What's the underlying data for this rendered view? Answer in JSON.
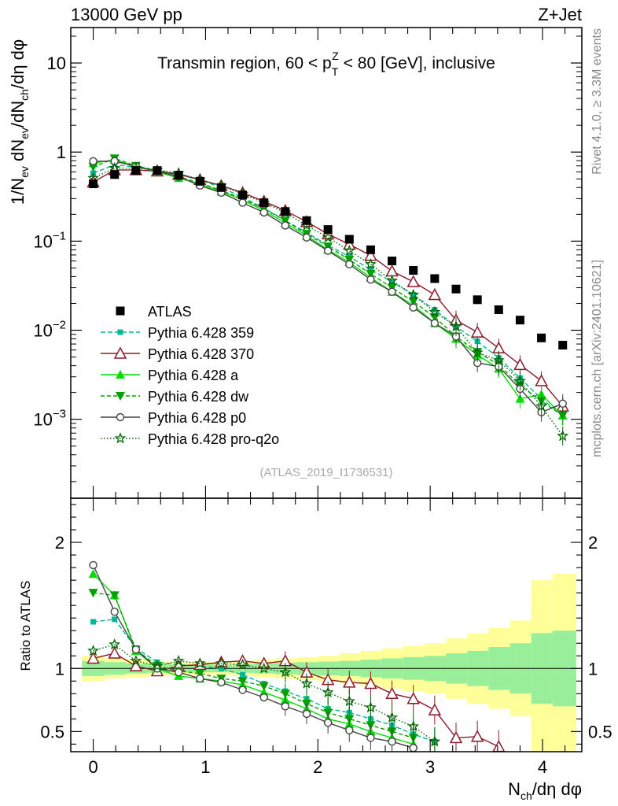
{
  "header": {
    "left": "13000 GeV pp",
    "right": "Z+Jet"
  },
  "side_labels": {
    "rivet": "Rivet 4.1.0, ≥ 3.3M events",
    "mcplots": "mcplots.cern.ch [arXiv:2401.10621]"
  },
  "analysis_id": "(ATLAS_2019_I1736531)",
  "colors": {
    "atlas": "#000000",
    "p359": "#00b894",
    "p370": "#8b1a2b",
    "pa": "#00dd00",
    "pdw": "#00a000",
    "pp0": "#444444",
    "ppro": "#006400",
    "band_inner": "#99ee99",
    "band_outer": "#ffff99"
  },
  "chart_data": [
    {
      "type": "line",
      "title": "Transmin region, 60 < p_T^Z < 80 [GeV], inclusive",
      "title_parts": {
        "a": "Transmin region, 60 < p",
        "sub": "T",
        "sup": "Z",
        "b": " < 80 [GeV], inclusive"
      },
      "ylabel": "1/N_ev dN_ev/dN_ch/dη dφ",
      "ylabel_parts": {
        "p1": "1/N",
        "s1": "ev",
        "p2": " dN",
        "s2": "ev",
        "p3": "/dN",
        "s3": "ch",
        "p4": "/dη dφ"
      },
      "yscale": "log",
      "xlim": [
        -0.2,
        4.35
      ],
      "ylim": [
        0.00013,
        25
      ],
      "yticks": [
        {
          "v": 0.001,
          "base": "10",
          "exp": "−3"
        },
        {
          "v": 0.01,
          "base": "10",
          "exp": "−2"
        },
        {
          "v": 0.1,
          "base": "10",
          "exp": "−1"
        },
        {
          "v": 1,
          "base": "1",
          "exp": ""
        },
        {
          "v": 10,
          "base": "10",
          "exp": ""
        }
      ],
      "x": [
        0.0,
        0.19,
        0.38,
        0.57,
        0.76,
        0.95,
        1.14,
        1.33,
        1.52,
        1.71,
        1.9,
        2.09,
        2.28,
        2.47,
        2.66,
        2.85,
        3.04,
        3.23,
        3.42,
        3.61,
        3.8,
        3.99,
        4.18
      ],
      "legend_title": "ATLAS",
      "series": [
        {
          "key": "atlas",
          "name": "ATLAS",
          "marker": "square",
          "dash": "none",
          "values": [
            0.44,
            0.56,
            0.62,
            0.62,
            0.55,
            0.47,
            0.4,
            0.33,
            0.27,
            0.215,
            0.17,
            0.135,
            0.105,
            0.08,
            0.06,
            0.047,
            0.038,
            0.029,
            0.022,
            0.017,
            0.013,
            0.0082,
            0.0068
          ]
        },
        {
          "key": "p359",
          "name": "Pythia 6.428 359",
          "marker": "square-small",
          "dash": "6,3",
          "values": [
            0.58,
            0.72,
            0.68,
            0.62,
            0.57,
            0.49,
            0.4,
            0.31,
            0.235,
            0.17,
            0.125,
            0.09,
            0.067,
            0.048,
            0.035,
            0.025,
            0.017,
            0.011,
            0.0075,
            0.0049,
            0.0029,
            0.0017,
            0.0011
          ]
        },
        {
          "key": "p370",
          "name": "Pythia 6.428 370",
          "marker": "triangle-open",
          "dash": "none",
          "values": [
            0.46,
            0.63,
            0.63,
            0.61,
            0.56,
            0.49,
            0.42,
            0.35,
            0.28,
            0.22,
            0.165,
            0.12,
            0.092,
            0.069,
            0.046,
            0.035,
            0.025,
            0.013,
            0.0095,
            0.0063,
            0.0041,
            0.0027,
            0.0014
          ]
        },
        {
          "key": "pa",
          "name": "Pythia 6.428 a",
          "marker": "triangle",
          "dash": "none",
          "values": [
            0.75,
            0.82,
            0.69,
            0.6,
            0.51,
            0.44,
            0.36,
            0.29,
            0.22,
            0.16,
            0.115,
            0.08,
            0.058,
            0.039,
            0.027,
            0.019,
            0.012,
            0.008,
            0.0053,
            0.0037,
            0.0017,
            0.0019,
            0.0011
          ]
        },
        {
          "key": "pdw",
          "name": "Pythia 6.428 dw",
          "marker": "triangle-down",
          "dash": "5,3",
          "values": [
            0.68,
            0.85,
            0.7,
            0.62,
            0.53,
            0.45,
            0.37,
            0.3,
            0.23,
            0.17,
            0.12,
            0.087,
            0.062,
            0.043,
            0.03,
            0.021,
            0.014,
            0.0085,
            0.0057,
            0.0041,
            0.0024,
            0.0016,
            0.0011
          ]
        },
        {
          "key": "pp0",
          "name": "Pythia 6.428 p0",
          "marker": "circle-open",
          "dash": "none",
          "values": [
            0.79,
            0.79,
            0.69,
            0.61,
            0.53,
            0.42,
            0.35,
            0.27,
            0.21,
            0.15,
            0.11,
            0.078,
            0.055,
            0.037,
            0.027,
            0.018,
            0.012,
            0.0085,
            0.0043,
            0.0039,
            0.0022,
            0.0012,
            0.0015
          ]
        },
        {
          "key": "ppro",
          "name": "Pythia 6.428 pro-q2o",
          "marker": "star",
          "dash": "1.5,2.5",
          "values": [
            0.51,
            0.66,
            0.66,
            0.63,
            0.58,
            0.49,
            0.42,
            0.34,
            0.27,
            0.21,
            0.15,
            0.11,
            0.078,
            0.055,
            0.036,
            0.025,
            0.016,
            0.011,
            0.0056,
            0.0046,
            0.0027,
            0.0014,
            0.00065
          ]
        }
      ]
    },
    {
      "type": "line",
      "ylabel": "Ratio to ATLAS",
      "xlabel": "N_ch/dη dφ",
      "xlabel_parts": {
        "p1": "N",
        "sub": "ch",
        "p2": "/dη dφ"
      },
      "xlim": [
        -0.2,
        4.35
      ],
      "ylim": [
        0.34,
        2.35
      ],
      "xticks": [
        0,
        1,
        2,
        3,
        4
      ],
      "yticks": [
        0.5,
        1,
        2
      ],
      "bands": {
        "x_edges": [
          -0.1,
          0.1,
          0.29,
          0.48,
          0.67,
          0.86,
          1.05,
          1.24,
          1.43,
          1.62,
          1.81,
          2.0,
          2.19,
          2.38,
          2.57,
          2.76,
          2.95,
          3.14,
          3.33,
          3.52,
          3.71,
          3.9,
          4.09,
          4.3
        ],
        "inner": [
          0.06,
          0.05,
          0.04,
          0.035,
          0.03,
          0.03,
          0.03,
          0.035,
          0.04,
          0.045,
          0.05,
          0.055,
          0.06,
          0.07,
          0.08,
          0.09,
          0.1,
          0.12,
          0.14,
          0.17,
          0.2,
          0.28,
          0.3
        ],
        "outer": [
          0.1,
          0.08,
          0.07,
          0.06,
          0.05,
          0.05,
          0.05,
          0.06,
          0.07,
          0.08,
          0.09,
          0.1,
          0.12,
          0.14,
          0.16,
          0.18,
          0.2,
          0.24,
          0.28,
          0.32,
          0.38,
          0.7,
          0.75
        ]
      },
      "series": [
        {
          "key": "p359",
          "values": [
            1.37,
            1.39,
            1.16,
            1.05,
            1.03,
            1.02,
            1.0,
            0.95,
            0.88,
            0.82,
            0.76,
            0.68,
            0.65,
            0.6,
            0.55,
            0.48,
            0.42
          ]
        },
        {
          "key": "p370",
          "values": [
            1.08,
            1.12,
            1.02,
            0.98,
            1.02,
            1.03,
            1.05,
            1.06,
            1.04,
            1.06,
            0.97,
            0.91,
            0.89,
            0.88,
            0.8,
            0.76,
            0.67,
            0.45,
            0.46,
            0.38
          ]
        },
        {
          "key": "pa",
          "values": [
            1.75,
            1.58,
            1.14,
            1.0,
            0.94,
            0.92,
            0.9,
            0.87,
            0.81,
            0.75,
            0.68,
            0.6,
            0.56,
            0.5,
            0.45,
            0.4
          ]
        },
        {
          "key": "pdw",
          "values": [
            1.6,
            1.58,
            1.15,
            1.02,
            0.98,
            0.96,
            0.92,
            0.9,
            0.86,
            0.8,
            0.72,
            0.65,
            0.6,
            0.55,
            0.5,
            0.45
          ]
        },
        {
          "key": "pp0",
          "values": [
            1.82,
            1.45,
            1.15,
            1.0,
            0.97,
            0.92,
            0.89,
            0.83,
            0.77,
            0.7,
            0.64,
            0.57,
            0.51,
            0.45,
            0.42,
            0.37
          ]
        },
        {
          "key": "ppro",
          "values": [
            1.14,
            1.19,
            1.06,
            1.02,
            1.06,
            1.04,
            1.04,
            1.03,
            1.0,
            0.97,
            0.88,
            0.81,
            0.74,
            0.69,
            0.61,
            0.54,
            0.42
          ]
        }
      ]
    }
  ]
}
